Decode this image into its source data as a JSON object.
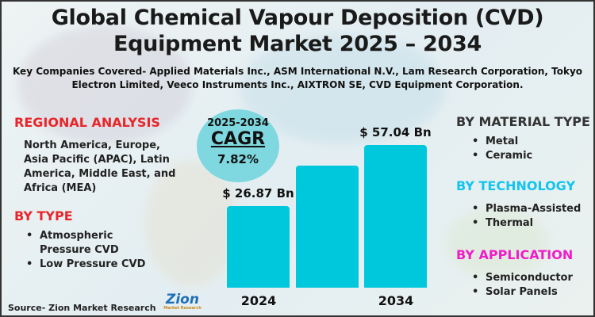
{
  "title_line1": "Global Chemical Vapour Deposition (CVD)",
  "title_line2": "Equipment Market 2025 – 2034",
  "companies": "Key Companies Covered- Applied Materials Inc., ASM International N.V., Lam Research Corporation, Tokyo Electron Limited, Veeco Instruments Inc., AIXTRON SE, CVD Equipment Corporation.",
  "regional": {
    "heading": "REGIONAL ANALYSIS",
    "text": "North America, Europe, Asia Pacific (APAC), Latin America, Middle East, and Africa (MEA)",
    "color": "#e8262a"
  },
  "by_type": {
    "heading": "BY TYPE",
    "items": [
      "Atmospheric Pressure CVD",
      "Low Pressure CVD"
    ],
    "color": "#e8262a"
  },
  "by_material": {
    "heading": "BY MATERIAL TYPE",
    "items": [
      "Metal",
      "Ceramic"
    ],
    "color": "#333333"
  },
  "by_technology": {
    "heading": "BY TECHNOLOGY",
    "items": [
      "Plasma-Assisted",
      "Thermal"
    ],
    "color": "#12c4f0"
  },
  "by_application": {
    "heading": "BY APPLICATION",
    "items": [
      "Semiconductor",
      "Solar Panels"
    ],
    "color": "#f01cc8"
  },
  "cagr": {
    "period": "2025-2034",
    "label": "CAGR",
    "value": "7.82%"
  },
  "source": "Source- Zion Market Research",
  "logo": {
    "name": "Zion",
    "sub": "Market Research"
  },
  "chart_data": {
    "type": "bar",
    "categories": [
      "2024",
      "",
      "2034"
    ],
    "values": [
      26.87,
      null,
      57.04
    ],
    "data_labels": [
      "$ 26.87 Bn",
      "",
      "$ 57.04 Bn"
    ],
    "unit": "USD Bn",
    "bar_color": "#00c8dc"
  }
}
